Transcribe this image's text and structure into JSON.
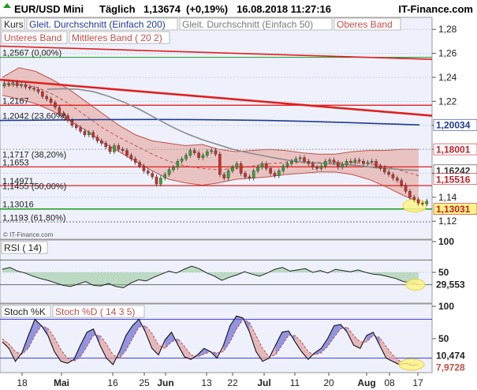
{
  "header": {
    "instrument": "EUR/USD Mini",
    "period": "Täglich",
    "price": "1,13674",
    "change": "(+0,19%)",
    "datetime": "16.08.2018 11:27:16",
    "brand": "IT-Finance.com"
  },
  "legend": {
    "row1": [
      "Kurs",
      "Gleit. Durchschnitt (Einfach 200)",
      "Gleit. Durchschnitt (Einfach 50)",
      "Oberes Band"
    ],
    "row2": [
      "Unteres Band",
      "Mittleres Band ( 20 2)"
    ]
  },
  "watermark": "© IT-Finance.com",
  "colors": {
    "background_main": "#eef1fb",
    "band_fill": "#e7b3ad",
    "band_line": "#c0504d",
    "ma200": "#1f3a93",
    "ma50": "#8c8c8c",
    "trend": "#e0201f",
    "green": "#1a9a1a",
    "candle_up": "#35a535",
    "candle_down": "#d0302b",
    "highlight": "#fff48a"
  },
  "chart_data": [
    {
      "type": "candlestick",
      "title": "EUR/USD Mini",
      "ylim": [
        1.105,
        1.29
      ],
      "y_ticks": [
        "1,28",
        "1,26",
        "1,24",
        "1,22",
        "1,2",
        "1,18",
        "1,16",
        "1,14",
        "1,12"
      ],
      "x_ticks": [
        "18",
        "Mai",
        "16",
        "25",
        "Jun",
        "13",
        "22",
        "Jul",
        "11",
        "20",
        "Aug",
        "08",
        "17"
      ],
      "fib_levels": [
        {
          "label": "1,2567 (0,00%)",
          "value": 1.2567
        },
        {
          "label": "1,2042 (23,60%)",
          "value": 1.2042
        },
        {
          "label": "1,1717 (38,20%)",
          "value": 1.1717
        },
        {
          "label": "1,1455 (50,00%)",
          "value": 1.1455
        },
        {
          "label": "1,1193 (61,80%)",
          "value": 1.1193
        }
      ],
      "level_labels": [
        {
          "label": "1,2167",
          "value": 1.2167
        },
        {
          "label": "1,1653",
          "value": 1.1653
        },
        {
          "label": "1,14971",
          "value": 1.1497
        },
        {
          "label": "1,13016",
          "value": 1.1302
        }
      ],
      "price_tags": [
        {
          "label": "1,20034",
          "value": 1.2003,
          "color": "#1f3a93",
          "bg": "#ffffff"
        },
        {
          "label": "1,18001",
          "value": 1.18,
          "color": "#c0202a",
          "bg": "#ffffff"
        },
        {
          "label": "1,16242",
          "value": 1.1624,
          "color": "#333333",
          "bg": "#ffffff"
        },
        {
          "label": "1,15516",
          "value": 1.1552,
          "color": "#c0202a",
          "bg": "#ffffff"
        },
        {
          "label": "1,13031",
          "value": 1.1303,
          "color": "#c0202a",
          "bg": "#fff48a"
        }
      ],
      "series": [
        {
          "name": "Kurs",
          "close": [
            1.235,
            1.234,
            1.2355,
            1.233,
            1.234,
            1.232,
            1.231,
            1.23,
            1.228,
            1.224,
            1.222,
            1.219,
            1.215,
            1.21,
            1.208,
            1.204,
            1.2,
            1.198,
            1.195,
            1.192,
            1.194,
            1.19,
            1.187,
            1.185,
            1.182,
            1.178,
            1.183,
            1.18,
            1.179,
            1.175,
            1.172,
            1.169,
            1.166,
            1.162,
            1.16,
            1.157,
            1.151,
            1.156,
            1.159,
            1.163,
            1.165,
            1.17,
            1.172,
            1.175,
            1.179,
            1.177,
            1.173,
            1.175,
            1.178,
            1.179,
            1.176,
            1.159,
            1.156,
            1.162,
            1.165,
            1.168,
            1.16,
            1.157,
            1.156,
            1.162,
            1.165,
            1.168,
            1.164,
            1.16,
            1.158,
            1.162,
            1.166,
            1.168,
            1.17,
            1.172,
            1.173,
            1.17,
            1.168,
            1.165,
            1.164,
            1.166,
            1.17,
            1.171,
            1.169,
            1.165,
            1.167,
            1.17,
            1.169,
            1.171,
            1.17,
            1.168,
            1.169,
            1.17,
            1.166,
            1.164,
            1.161,
            1.159,
            1.156,
            1.154,
            1.15,
            1.145,
            1.14,
            1.138,
            1.135,
            1.1345,
            1.1367
          ]
        },
        {
          "name": "Gleit. Durchschnitt (Einfach 200)",
          "values": [
            1.204,
            1.2043,
            1.2046,
            1.2048,
            1.2049,
            1.2048,
            1.2045,
            1.204,
            1.2033,
            1.2024,
            1.2013,
            1.2003
          ]
        },
        {
          "name": "Gleit. Durchschnitt (Einfach 50)",
          "values": [
            1.23,
            1.2305,
            1.23,
            1.228,
            1.224,
            1.219,
            1.213,
            1.206,
            1.199,
            1.193,
            1.188,
            1.184,
            1.18,
            1.177,
            1.1745,
            1.172,
            1.17,
            1.169,
            1.168,
            1.1675,
            1.1665,
            1.165,
            1.164,
            1.163,
            1.1624
          ]
        },
        {
          "name": "Oberes Band",
          "values": [
            1.24,
            1.248,
            1.245,
            1.238,
            1.23,
            1.22,
            1.21,
            1.2,
            1.192,
            1.187,
            1.185,
            1.183,
            1.184,
            1.18,
            1.178,
            1.179,
            1.18,
            1.179,
            1.177,
            1.176,
            1.176,
            1.178,
            1.179,
            1.179,
            1.18,
            1.18
          ]
        },
        {
          "name": "Mittleres Band ( 20 2)",
          "values": [
            1.233,
            1.234,
            1.232,
            1.226,
            1.218,
            1.208,
            1.198,
            1.19,
            1.183,
            1.176,
            1.17,
            1.166,
            1.164,
            1.163,
            1.164,
            1.166,
            1.168,
            1.169,
            1.169,
            1.169,
            1.169,
            1.169,
            1.168,
            1.166,
            1.162,
            1.158
          ]
        },
        {
          "name": "Unteres Band",
          "values": [
            1.225,
            1.222,
            1.218,
            1.212,
            1.204,
            1.196,
            1.186,
            1.178,
            1.17,
            1.162,
            1.155,
            1.152,
            1.15,
            1.152,
            1.155,
            1.156,
            1.157,
            1.159,
            1.16,
            1.161,
            1.161,
            1.159,
            1.155,
            1.149,
            1.142,
            1.136
          ]
        }
      ]
    },
    {
      "type": "line",
      "title": "RSI ( 14)",
      "ylim": [
        0,
        100
      ],
      "y_ticks": [
        "100",
        "50"
      ],
      "levels": [
        30,
        70
      ],
      "current_label": "29,553",
      "series": [
        {
          "name": "RSI ( 14)",
          "values": [
            55,
            58,
            52,
            49,
            44,
            40,
            37,
            33,
            29,
            27,
            31,
            35,
            29,
            28,
            32,
            27,
            25,
            33,
            38,
            36,
            42,
            47,
            52,
            49,
            55,
            60,
            56,
            49,
            44,
            37,
            42,
            46,
            51,
            47,
            44,
            49,
            55,
            58,
            52,
            54,
            56,
            50,
            53,
            49,
            55,
            53,
            51,
            54,
            50,
            47,
            46,
            43,
            40,
            35,
            33,
            30
          ]
        }
      ]
    },
    {
      "type": "line",
      "title": "Stoch %K",
      "ylim": [
        0,
        100
      ],
      "y_ticks": [
        "100",
        "50"
      ],
      "levels": [
        20,
        80
      ],
      "current_labels": [
        "10,474",
        "7,9728"
      ],
      "series": [
        {
          "name": "Stoch %K",
          "values": [
            45,
            35,
            15,
            28,
            55,
            80,
            70,
            55,
            30,
            15,
            12,
            18,
            40,
            60,
            65,
            40,
            20,
            10,
            30,
            55,
            70,
            80,
            60,
            35,
            25,
            48,
            60,
            40,
            22,
            18,
            25,
            35,
            30,
            20,
            40,
            70,
            85,
            82,
            60,
            30,
            15,
            20,
            40,
            60,
            62,
            45,
            30,
            18,
            28,
            35,
            50,
            70,
            72,
            60,
            40,
            35,
            55,
            60,
            40,
            20,
            15,
            10,
            12,
            8,
            10
          ]
        },
        {
          "name": "Stoch %D ( 14 3 5)",
          "values": [
            50,
            42,
            30,
            26,
            35,
            55,
            70,
            66,
            52,
            33,
            20,
            15,
            22,
            38,
            55,
            55,
            42,
            25,
            20,
            32,
            50,
            68,
            70,
            58,
            40,
            35,
            45,
            50,
            38,
            25,
            22,
            26,
            30,
            28,
            30,
            45,
            65,
            80,
            75,
            55,
            35,
            22,
            25,
            40,
            55,
            55,
            45,
            30,
            25,
            28,
            38,
            52,
            65,
            68,
            55,
            45,
            45,
            55,
            52,
            38,
            25,
            16,
            13,
            11,
            10
          ]
        }
      ]
    }
  ]
}
